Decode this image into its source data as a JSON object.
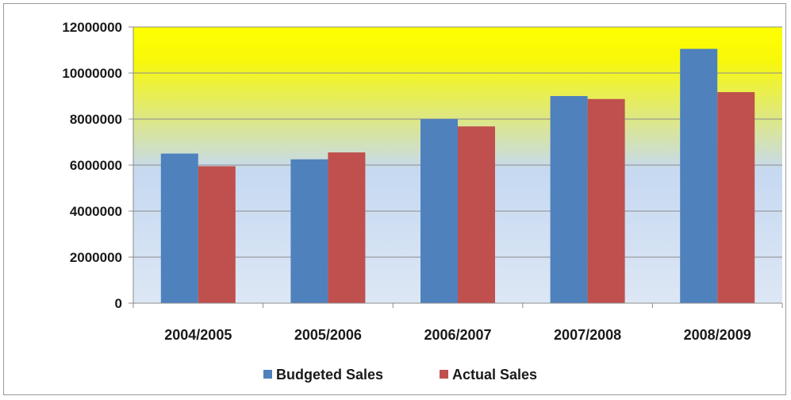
{
  "chart_data": {
    "type": "bar",
    "categories": [
      "2004/2005",
      "2005/2006",
      "2006/2007",
      "2007/2008",
      "2008/2009"
    ],
    "series": [
      {
        "name": "Budgeted Sales",
        "values": [
          6500000,
          6250000,
          8000000,
          9000000,
          11050000
        ],
        "color": "#4f81bd"
      },
      {
        "name": "Actual Sales",
        "values": [
          5950000,
          6550000,
          7680000,
          8870000,
          9170000
        ],
        "color": "#c0504d"
      }
    ],
    "yticks": [
      "0",
      "2000000",
      "4000000",
      "6000000",
      "8000000",
      "10000000",
      "12000000"
    ],
    "ylim": [
      0,
      12000000
    ],
    "title": "",
    "xlabel": "",
    "ylabel": "",
    "grid": true,
    "legend_position": "bottom",
    "plot_gradient": {
      "top": "#ffff00",
      "middle": "#c6d9f1",
      "bottom": "#dde7f5"
    }
  }
}
